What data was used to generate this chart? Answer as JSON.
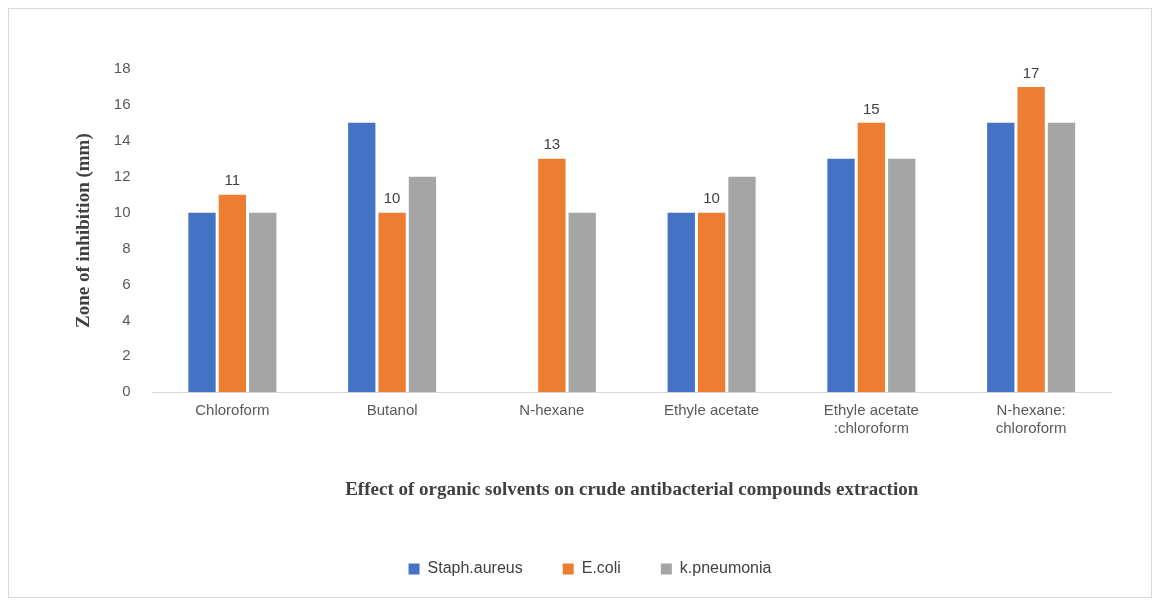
{
  "chart_data": {
    "type": "bar",
    "xlabel": "Effect of organic solvents on crude antibacterial compounds extraction",
    "ylabel": "Zone of inhibition (mm)",
    "categories": [
      "Chloroform",
      "Butanol",
      "N-hexane",
      "Ethyle acetate",
      "Ethyle acetate :chloroform",
      "N-hexane: chloroform"
    ],
    "series": [
      {
        "name": "Staph.aureus",
        "color": "#4472c4",
        "values": [
          10,
          15,
          0,
          10,
          13,
          15
        ]
      },
      {
        "name": "E.coli",
        "color": "#ed7d31",
        "values": [
          11,
          10,
          13,
          10,
          15,
          17
        ],
        "value_labels": [
          "11",
          "10",
          "13",
          "10",
          "15",
          "17"
        ]
      },
      {
        "name": "k.pneumonia",
        "color": "#a5a5a5",
        "values": [
          10,
          12,
          10,
          12,
          13,
          15
        ]
      }
    ],
    "ylim": [
      0,
      18
    ],
    "yticks": [
      0,
      2,
      4,
      6,
      8,
      10,
      12,
      14,
      16,
      18
    ],
    "grid": false,
    "legend": "bottom"
  }
}
